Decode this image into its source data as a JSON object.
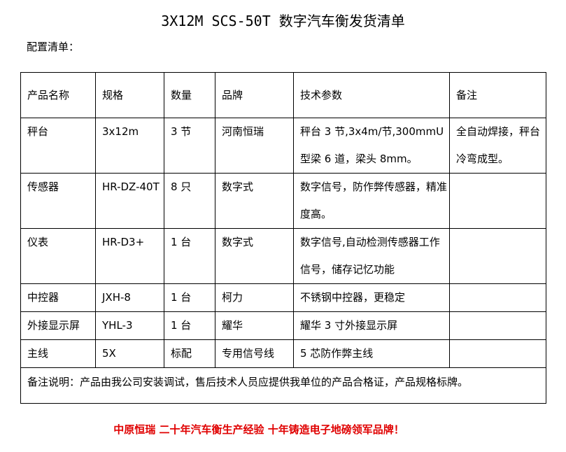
{
  "title": "3X12M SCS-50T 数字汽车衡发货清单",
  "subtitle": "配置清单：",
  "table": {
    "headers": [
      "产品名称",
      "规格",
      "数量",
      "品牌",
      "技术参数",
      "备注"
    ],
    "rows": [
      [
        "秤台",
        "3x12m",
        "3 节",
        "河南恒瑞",
        "秤台 3 节,3x4m/节,300mmU型梁 6 道，梁头 8mm。",
        "全自动焊接，秤台冷弯成型。"
      ],
      [
        "传感器",
        "HR-DZ-40T",
        "8 只",
        "数字式",
        "数字信号，防作弊传感器，精准度高。",
        ""
      ],
      [
        "仪表",
        "HR-D3+",
        "1 台",
        "数字式",
        "数字信号,自动检测传感器工作信号，储存记忆功能",
        ""
      ],
      [
        "中控器",
        "JXH-8",
        "1 台",
        "柯力",
        "不锈钢中控器，更稳定",
        ""
      ],
      [
        "外接显示屏",
        "YHL-3",
        "1 台",
        "耀华",
        "耀华 3 寸外接显示屏",
        ""
      ],
      [
        "主线",
        "5X",
        "标配",
        "专用信号线",
        "5 芯防作弊主线",
        ""
      ]
    ],
    "footer": "备注说明：产品由我公司安装调试，售后技术人员应提供我单位的产品合格证，产品规格标牌。"
  },
  "slogan": "中原恒瑞 二十年汽车衡生产经验 十年铸造电子地磅领军品牌！",
  "colors": {
    "slogan": "#e00000"
  }
}
